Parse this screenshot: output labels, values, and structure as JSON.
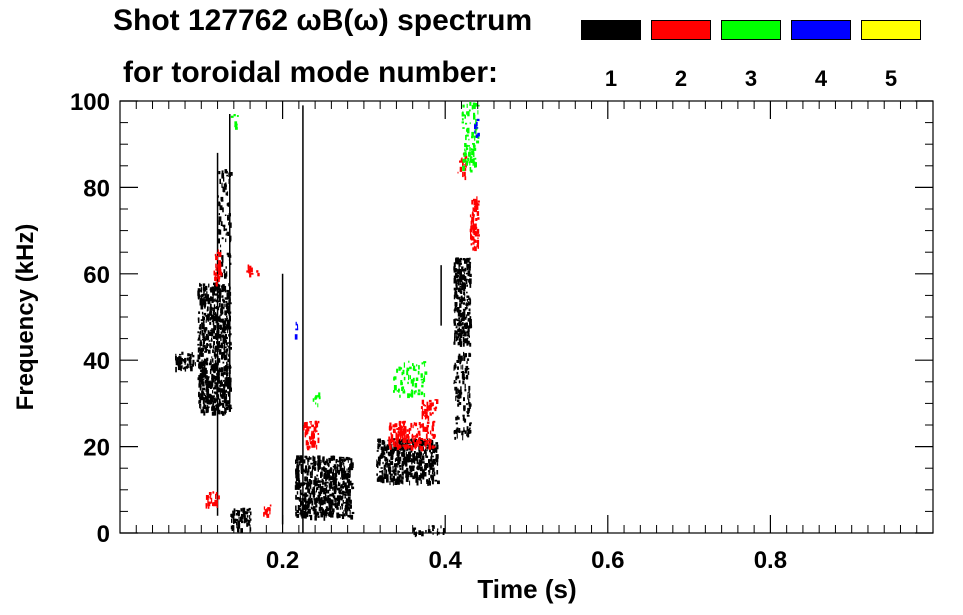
{
  "title_line1": "Shot 127762 ωB(ω) spectrum",
  "title_line2": "for toroidal mode number:",
  "legend": [
    {
      "label": "1",
      "color": "#000000"
    },
    {
      "label": "2",
      "color": "#ff0000"
    },
    {
      "label": "3",
      "color": "#00ff00"
    },
    {
      "label": "4",
      "color": "#0000ff"
    },
    {
      "label": "5",
      "color": "#ffff00"
    }
  ],
  "chart_data": {
    "type": "scatter",
    "title": "Shot 127762 ωB(ω) spectrum",
    "subtitle": "for toroidal mode number:",
    "xlabel": "Time (s)",
    "ylabel": "Frequency (kHz)",
    "xlim": [
      0.0,
      1.0
    ],
    "ylim": [
      0,
      100
    ],
    "xticks": [
      0.2,
      0.4,
      0.6,
      0.8
    ],
    "xtick_labels": [
      "0.2",
      "0.4",
      "0.6",
      "0.8"
    ],
    "yticks": [
      0,
      20,
      40,
      60,
      80,
      100
    ],
    "ytick_labels": [
      "0",
      "20",
      "40",
      "60",
      "80",
      "100"
    ],
    "grid": false,
    "legend_position": "top-right",
    "series": [
      {
        "name": "1",
        "color": "#000000",
        "clusters": [
          {
            "t": [
              0.065,
              0.095
            ],
            "f": [
              38,
              42
            ],
            "density": 0.6
          },
          {
            "t": [
              0.095,
              0.135
            ],
            "f": [
              28,
              58
            ],
            "density": 0.9
          },
          {
            "t": [
              0.12,
              0.135
            ],
            "f": [
              60,
              85
            ],
            "density": 0.3
          },
          {
            "t": [
              0.135,
              0.16
            ],
            "f": [
              1,
              6
            ],
            "density": 0.7
          },
          {
            "t": [
              0.215,
              0.285
            ],
            "f": [
              4,
              18
            ],
            "density": 0.9
          },
          {
            "t": [
              0.315,
              0.39
            ],
            "f": [
              12,
              22
            ],
            "density": 0.85
          },
          {
            "t": [
              0.41,
              0.43
            ],
            "f": [
              44,
              64
            ],
            "density": 0.95
          },
          {
            "t": [
              0.41,
              0.43
            ],
            "f": [
              22,
              42
            ],
            "density": 0.4
          },
          {
            "t": [
              0.36,
              0.4
            ],
            "f": [
              0,
              2
            ],
            "density": 0.4
          }
        ],
        "lines": [
          {
            "t": 0.225,
            "f": [
              0,
              99
            ]
          },
          {
            "t": 0.12,
            "f": [
              4,
              88
            ]
          },
          {
            "t": 0.135,
            "f": [
              30,
              97
            ]
          },
          {
            "t": 0.2,
            "f": [
              2,
              60
            ]
          },
          {
            "t": 0.395,
            "f": [
              48,
              62
            ]
          }
        ]
      },
      {
        "name": "2",
        "color": "#ff0000",
        "clusters": [
          {
            "t": [
              0.115,
              0.125
            ],
            "f": [
              58,
              66
            ],
            "density": 0.6
          },
          {
            "t": [
              0.105,
              0.12
            ],
            "f": [
              6,
              10
            ],
            "density": 0.6
          },
          {
            "t": [
              0.175,
              0.185
            ],
            "f": [
              4,
              7
            ],
            "density": 0.6
          },
          {
            "t": [
              0.225,
              0.245
            ],
            "f": [
              20,
              26
            ],
            "density": 0.7
          },
          {
            "t": [
              0.33,
              0.385
            ],
            "f": [
              20,
              26
            ],
            "density": 0.7
          },
          {
            "t": [
              0.37,
              0.39
            ],
            "f": [
              27,
              31
            ],
            "density": 0.6
          },
          {
            "t": [
              0.43,
              0.44
            ],
            "f": [
              66,
              78
            ],
            "density": 0.85
          },
          {
            "t": [
              0.415,
              0.425
            ],
            "f": [
              82,
              88
            ],
            "density": 0.4
          },
          {
            "t": [
              0.155,
              0.17
            ],
            "f": [
              60,
              63
            ],
            "density": 0.4
          }
        ]
      },
      {
        "name": "3",
        "color": "#00ff00",
        "clusters": [
          {
            "t": [
              0.42,
              0.44
            ],
            "f": [
              84,
              100
            ],
            "density": 0.4
          },
          {
            "t": [
              0.335,
              0.375
            ],
            "f": [
              32,
              40
            ],
            "density": 0.3
          },
          {
            "t": [
              0.235,
              0.245
            ],
            "f": [
              30,
              33
            ],
            "density": 0.4
          },
          {
            "t": [
              0.135,
              0.145
            ],
            "f": [
              93,
              98
            ],
            "density": 0.2
          }
        ]
      },
      {
        "name": "4",
        "color": "#0000ff",
        "clusters": [
          {
            "t": [
              0.215,
              0.22
            ],
            "f": [
              46,
              49
            ],
            "density": 0.5
          },
          {
            "t": [
              0.435,
              0.44
            ],
            "f": [
              92,
              96
            ],
            "density": 0.5
          }
        ]
      },
      {
        "name": "5",
        "color": "#ffff00",
        "clusters": []
      }
    ]
  }
}
